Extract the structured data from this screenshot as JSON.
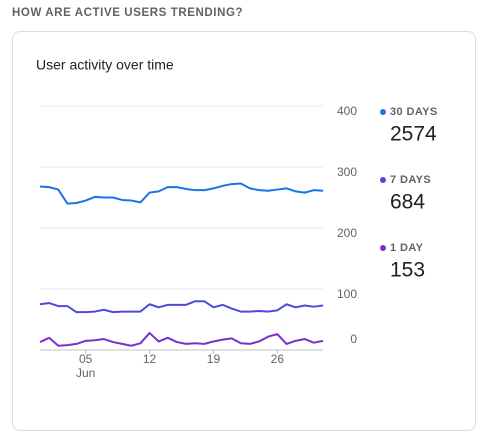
{
  "section_title": "HOW ARE ACTIVE USERS TRENDING?",
  "chart_data": {
    "type": "line",
    "title": "User activity over time",
    "categories": [
      null,
      null,
      null,
      null,
      null,
      "05",
      null,
      null,
      null,
      null,
      null,
      null,
      "12",
      null,
      null,
      null,
      null,
      null,
      null,
      "19",
      null,
      null,
      null,
      null,
      null,
      null,
      "26",
      null,
      null,
      null,
      null,
      null
    ],
    "x_sublabel": "Jun",
    "ylim": [
      0,
      400
    ],
    "yticks": [
      0,
      100,
      200,
      300,
      400
    ],
    "grid": true,
    "series": [
      {
        "name": "30 DAYS",
        "color": "#1a73e8",
        "total": 2574,
        "values": [
          268,
          267,
          263,
          240,
          241,
          245,
          251,
          250,
          250,
          246,
          245,
          242,
          258,
          260,
          267,
          267,
          264,
          262,
          262,
          265,
          269,
          272,
          273,
          265,
          262,
          261,
          263,
          265,
          260,
          258,
          262,
          261
        ]
      },
      {
        "name": "7 DAYS",
        "color": "#4e4ae0",
        "total": 684,
        "values": [
          75,
          77,
          72,
          72,
          62,
          62,
          63,
          66,
          62,
          63,
          63,
          63,
          75,
          70,
          74,
          74,
          74,
          80,
          80,
          70,
          74,
          68,
          63,
          63,
          64,
          63,
          65,
          75,
          70,
          73,
          71,
          73
        ]
      },
      {
        "name": "1 DAY",
        "color": "#7b2fd0",
        "total": 153,
        "values": [
          13,
          20,
          7,
          8,
          10,
          15,
          16,
          18,
          13,
          10,
          7,
          11,
          28,
          14,
          20,
          13,
          10,
          11,
          10,
          14,
          17,
          19,
          11,
          10,
          14,
          22,
          26,
          10,
          15,
          18,
          12,
          15
        ]
      }
    ]
  }
}
